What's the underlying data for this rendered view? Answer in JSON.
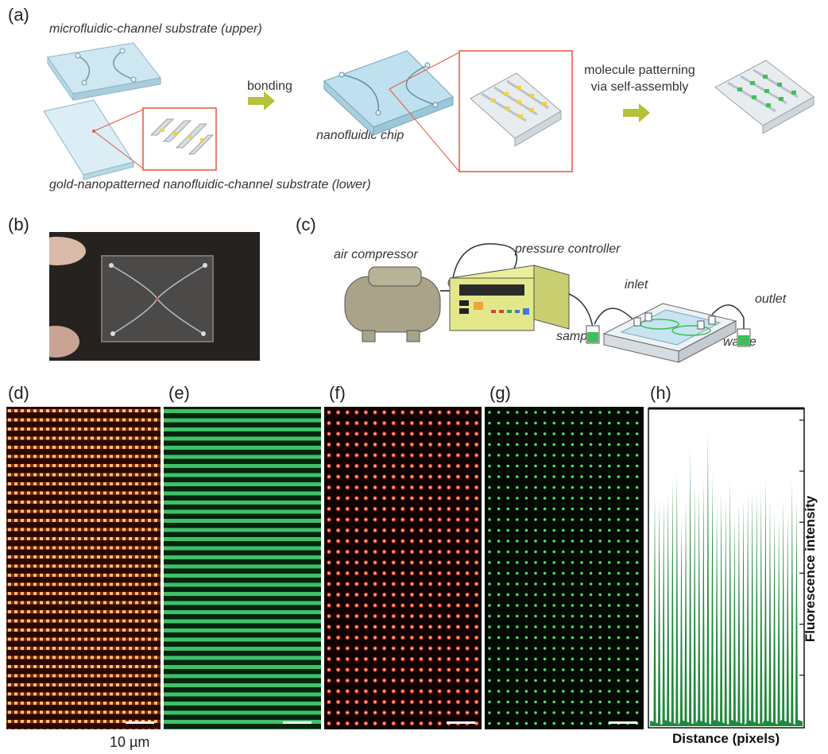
{
  "panels": {
    "a": "(a)",
    "b": "(b)",
    "c": "(c)",
    "d": "(d)",
    "e": "(e)",
    "f": "(f)",
    "g": "(g)",
    "h": "(h)"
  },
  "panel_a": {
    "upper_label": "microfluidic-channel substrate (upper)",
    "lower_label": "gold-nanopatterned nanofluidic-channel substrate (lower)",
    "bonding": "bonding",
    "chip_label": "nanofluidic chip",
    "patterning_line1": "molecule patterning",
    "patterning_line2": "via self-assembly"
  },
  "panel_c": {
    "air_compressor": "air compressor",
    "pressure_controller": "pressure controller",
    "inlet": "inlet",
    "outlet": "outlet",
    "sample": "sample",
    "waste": "waste"
  },
  "scale_label": "10 µm",
  "colors": {
    "arrow": "#b5c23a",
    "chip": "#bfe0ee",
    "red_zoom": "#e7563e",
    "gold": "#f2d23a",
    "green": "#3fbf5a",
    "dot_red": "#ff7a3a"
  },
  "chart_data": {
    "type": "line",
    "title": "",
    "xlabel": "Distance (pixels)",
    "ylabel": "Fluorescence intensity",
    "grid": false,
    "series_color": "#1f8a3b",
    "peaks": [
      0.74,
      0.72,
      0.72,
      0.74,
      0.78,
      0.8,
      0.66,
      0.72,
      0.88,
      0.76,
      0.75,
      0.78,
      0.93,
      0.8,
      0.7,
      0.74,
      0.72,
      0.78,
      0.67,
      0.71,
      0.72,
      0.74,
      0.75,
      0.74,
      0.74,
      0.78,
      0.72,
      0.68,
      0.66,
      0.72,
      0.68,
      0.78,
      0.72
    ]
  }
}
